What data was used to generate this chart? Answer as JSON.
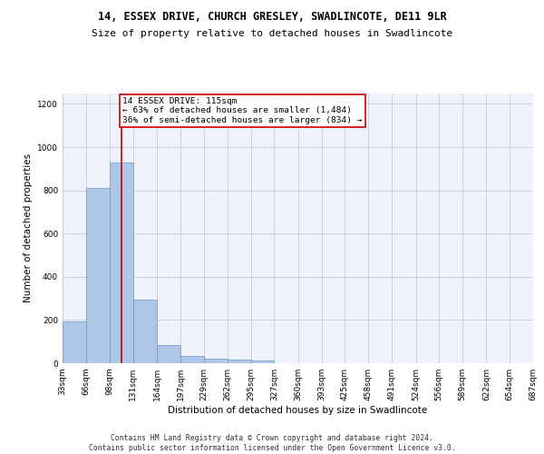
{
  "title1": "14, ESSEX DRIVE, CHURCH GRESLEY, SWADLINCOTE, DE11 9LR",
  "title2": "Size of property relative to detached houses in Swadlincote",
  "xlabel": "Distribution of detached houses by size in Swadlincote",
  "ylabel": "Number of detached properties",
  "bin_edges": [
    33,
    66,
    98,
    131,
    164,
    197,
    229,
    262,
    295,
    327,
    360,
    393,
    425,
    458,
    491,
    524,
    556,
    589,
    622,
    654,
    687
  ],
  "bar_heights": [
    195,
    810,
    930,
    295,
    85,
    35,
    20,
    15,
    12,
    0,
    0,
    0,
    0,
    0,
    0,
    0,
    0,
    0,
    0,
    0
  ],
  "bar_color": "#aec6e8",
  "bar_edgecolor": "#6699cc",
  "property_size": 115,
  "vline_x": 115,
  "vline_color": "#cc0000",
  "annotation_text": "14 ESSEX DRIVE: 115sqm\n← 63% of detached houses are smaller (1,484)\n36% of semi-detached houses are larger (834) →",
  "annotation_box_color": "#ffffff",
  "annotation_box_edgecolor": "#cc0000",
  "ylim": [
    0,
    1250
  ],
  "yticks": [
    0,
    200,
    400,
    600,
    800,
    1000,
    1200
  ],
  "tick_labels": [
    "33sqm",
    "66sqm",
    "98sqm",
    "131sqm",
    "164sqm",
    "197sqm",
    "229sqm",
    "262sqm",
    "295sqm",
    "327sqm",
    "360sqm",
    "393sqm",
    "425sqm",
    "458sqm",
    "491sqm",
    "524sqm",
    "556sqm",
    "589sqm",
    "622sqm",
    "654sqm",
    "687sqm"
  ],
  "grid_color": "#cccccc",
  "bg_color": "#eef2fb",
  "footer_text": "Contains HM Land Registry data © Crown copyright and database right 2024.\nContains public sector information licensed under the Open Government Licence v3.0.",
  "title_fontsize": 8.5,
  "subtitle_fontsize": 8,
  "axis_label_fontsize": 7.5,
  "tick_fontsize": 6.5,
  "footer_fontsize": 5.8
}
